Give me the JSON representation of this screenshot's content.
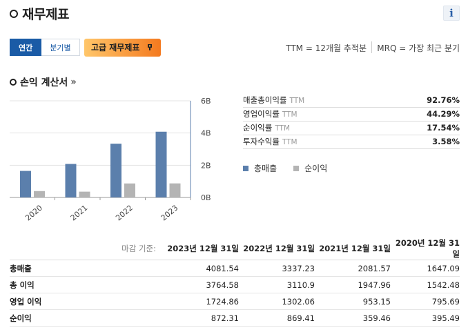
{
  "header": {
    "title": "재무제표",
    "info_label": "i"
  },
  "toolbar": {
    "tabs": [
      {
        "label": "연간"
      },
      {
        "label": "분기별"
      }
    ],
    "premium_label": "고급 재무제표",
    "ttm_note": "TTM = 12개월 추적분",
    "mrq_note": "MRQ = 가장 최근 분기"
  },
  "income": {
    "section_title": "손익 계산서",
    "section_link": "»",
    "ratios": [
      {
        "label": "매출총이익률",
        "tag": "TTM",
        "value": "92.76%"
      },
      {
        "label": "영업이익률",
        "tag": "TTM",
        "value": "44.29%"
      },
      {
        "label": "순이익률",
        "tag": "TTM",
        "value": "17.54%"
      },
      {
        "label": "투자수익률",
        "tag": "TTM",
        "value": "3.58%"
      }
    ],
    "legend": [
      {
        "label": "총매출",
        "color": "#5b7fac"
      },
      {
        "label": "순이익",
        "color": "#b4b4b4"
      }
    ]
  },
  "chart_data": {
    "type": "bar",
    "categories": [
      "2020",
      "2021",
      "2022",
      "2023"
    ],
    "series": [
      {
        "name": "총매출",
        "values": [
          1647.09,
          2081.57,
          3337.23,
          4081.54
        ],
        "color": "#5b7fac"
      },
      {
        "name": "순이익",
        "values": [
          395.49,
          359.46,
          869.41,
          872.31
        ],
        "color": "#b4b4b4"
      }
    ],
    "y_ticks": [
      0,
      2000,
      4000,
      6000
    ],
    "y_tick_labels": [
      "0B",
      "2B",
      "4B",
      "6B"
    ],
    "ylim": [
      0,
      6000
    ],
    "y_axis_side": "right",
    "grid": true,
    "xlabel": "",
    "ylabel": ""
  },
  "table": {
    "basis_label": "마감 기준:",
    "columns": [
      "2023년 12월 31일",
      "2022년 12월 31일",
      "2021년 12월 31일",
      "2020년 12월 31일"
    ],
    "rows": [
      {
        "label": "총매출",
        "values": [
          "4081.54",
          "3337.23",
          "2081.57",
          "1647.09"
        ]
      },
      {
        "label": "총 이익",
        "values": [
          "3764.58",
          "3110.9",
          "1947.96",
          "1542.48"
        ]
      },
      {
        "label": "영업 이익",
        "values": [
          "1724.86",
          "1302.06",
          "953.15",
          "795.69"
        ]
      },
      {
        "label": "순이익",
        "values": [
          "872.31",
          "869.41",
          "359.46",
          "395.49"
        ]
      }
    ]
  }
}
